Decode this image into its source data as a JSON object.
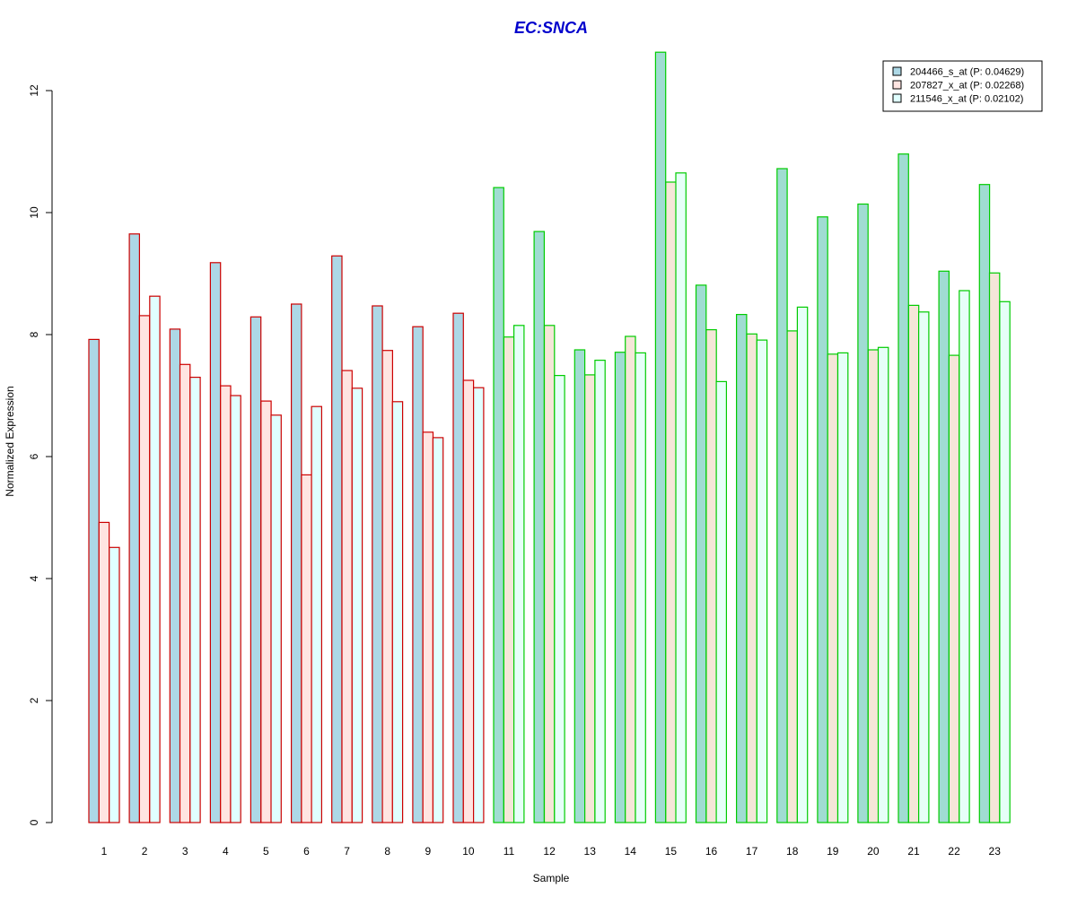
{
  "chart_data": {
    "type": "bar",
    "title": "EC:SNCA",
    "xlabel": "Sample",
    "ylabel": "Normalized Expression",
    "ylim": [
      0,
      12.6
    ],
    "yticks": [
      0,
      2,
      4,
      6,
      8,
      10,
      12
    ],
    "categories": [
      "1",
      "2",
      "3",
      "4",
      "5",
      "6",
      "7",
      "8",
      "9",
      "10",
      "11",
      "12",
      "13",
      "14",
      "15",
      "16",
      "17",
      "18",
      "19",
      "20",
      "21",
      "22",
      "23"
    ],
    "groups": [
      {
        "samples": [
          1,
          2,
          3,
          4,
          5,
          6,
          7,
          8,
          9,
          10
        ],
        "border_color": "#cc0000",
        "fills": [
          "#add8e6",
          "#ffe4e1",
          "#e0ffff"
        ]
      },
      {
        "samples": [
          11,
          12,
          13,
          14,
          15,
          16,
          17,
          18,
          19,
          20,
          21,
          22,
          23
        ],
        "border_color": "#00cc00",
        "fills": [
          "#a0dcd2",
          "#f5e6d8",
          "#e6fff8"
        ]
      }
    ],
    "series": [
      {
        "name": "204466_s_at (P: 0.04629)",
        "color": "#add8e6",
        "values": [
          7.92,
          9.65,
          8.09,
          9.18,
          8.29,
          8.5,
          9.29,
          8.47,
          8.13,
          8.35,
          10.41,
          9.69,
          7.75,
          7.71,
          12.63,
          8.81,
          8.33,
          10.72,
          9.93,
          10.14,
          10.96,
          9.04,
          10.46
        ]
      },
      {
        "name": "207827_x_at (P: 0.02268)",
        "color": "#ffe4e1",
        "values": [
          4.92,
          8.31,
          7.51,
          7.16,
          6.91,
          5.7,
          7.41,
          7.74,
          6.4,
          7.25,
          7.96,
          8.15,
          7.34,
          7.97,
          10.5,
          8.08,
          8.01,
          8.06,
          7.68,
          7.75,
          8.48,
          7.66,
          9.01
        ]
      },
      {
        "name": "211546_x_at (P: 0.02102)",
        "color": "#e0ffff",
        "values": [
          4.51,
          8.63,
          7.3,
          7.0,
          6.68,
          6.82,
          7.12,
          6.9,
          6.31,
          7.13,
          8.15,
          7.33,
          7.58,
          7.7,
          10.65,
          7.23,
          7.91,
          8.45,
          7.7,
          7.79,
          8.37,
          8.72,
          8.54
        ]
      }
    ],
    "colors": {
      "title": "#0000cc",
      "axis": "#000000"
    },
    "legend_position": "top-right",
    "grid": false
  }
}
